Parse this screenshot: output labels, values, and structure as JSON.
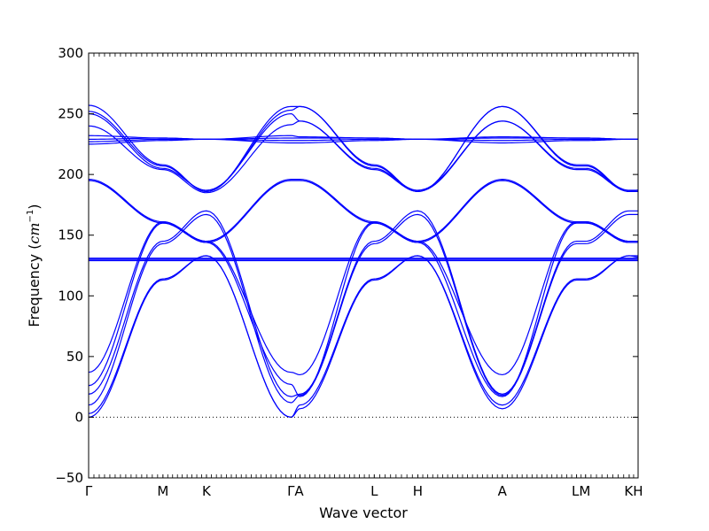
{
  "chart_data": {
    "type": "line",
    "title": "",
    "xlabel": "Wave vector",
    "ylabel": "Frequency",
    "ylabel_unit": "cm",
    "ylabel_unit_exponent": "−1",
    "ylim": [
      -50,
      300
    ],
    "y_ticks": [
      -50,
      0,
      50,
      100,
      150,
      200,
      250,
      300
    ],
    "grid": false,
    "legend": "none",
    "line_color": "#0000ff",
    "zero_line": {
      "y": 0,
      "style": "dotted",
      "color": "#000000"
    },
    "x_path": {
      "points": [
        {
          "label": "Γ",
          "x": 0.0
        },
        {
          "label": "M",
          "x": 0.58
        },
        {
          "label": "K",
          "x": 0.92
        },
        {
          "label": "Γ",
          "x": 1.58
        },
        {
          "label": "A",
          "x": 1.65
        },
        {
          "label": "L",
          "x": 2.23
        },
        {
          "label": "H",
          "x": 2.57
        },
        {
          "label": "A",
          "x": 3.23
        },
        {
          "label": "L",
          "x": 3.81
        },
        {
          "label": "M",
          "x": 3.88
        },
        {
          "label": "K",
          "x": 4.22
        },
        {
          "label": "H",
          "x": 4.29
        }
      ],
      "tick_labels": [
        {
          "text": "Γ",
          "x": 0.0
        },
        {
          "text": "M",
          "x": 0.58
        },
        {
          "text": "K",
          "x": 0.92
        },
        {
          "text": "ΓA",
          "x": 1.615
        },
        {
          "text": "L",
          "x": 2.23
        },
        {
          "text": "H",
          "x": 2.57
        },
        {
          "text": "A",
          "x": 3.23
        },
        {
          "text": "LM",
          "x": 3.845
        },
        {
          "text": "KH",
          "x": 4.255
        }
      ]
    },
    "series": [
      {
        "values": [
          [
            0,
            0
          ],
          [
            0.58,
            113
          ],
          [
            0.92,
            133
          ],
          [
            1.58,
            0
          ],
          [
            1.65,
            7
          ],
          [
            2.23,
            113
          ],
          [
            2.57,
            133
          ],
          [
            3.23,
            7
          ],
          [
            3.81,
            113
          ],
          [
            3.88,
            113
          ],
          [
            4.22,
            133
          ],
          [
            4.29,
            133
          ]
        ]
      },
      {
        "values": [
          [
            0,
            3
          ],
          [
            0.58,
            114
          ],
          [
            0.92,
            133
          ],
          [
            1.58,
            0
          ],
          [
            1.65,
            10
          ],
          [
            2.23,
            114
          ],
          [
            2.57,
            133
          ],
          [
            3.23,
            10
          ],
          [
            3.81,
            114
          ],
          [
            3.88,
            114
          ],
          [
            4.22,
            133
          ],
          [
            4.29,
            132
          ]
        ]
      },
      {
        "values": [
          [
            0,
            10
          ],
          [
            0.58,
            143
          ],
          [
            0.92,
            167
          ],
          [
            1.58,
            12
          ],
          [
            1.65,
            18
          ],
          [
            2.23,
            143
          ],
          [
            2.57,
            167
          ],
          [
            3.23,
            18
          ],
          [
            3.81,
            143
          ],
          [
            3.88,
            143
          ],
          [
            4.22,
            167
          ],
          [
            4.29,
            167
          ]
        ]
      },
      {
        "values": [
          [
            0,
            19
          ],
          [
            0.58,
            145
          ],
          [
            0.92,
            170
          ],
          [
            1.58,
            17
          ],
          [
            1.65,
            19
          ],
          [
            2.23,
            145
          ],
          [
            2.57,
            170
          ],
          [
            3.23,
            19
          ],
          [
            3.81,
            145
          ],
          [
            3.88,
            145
          ],
          [
            4.22,
            170
          ],
          [
            4.29,
            170
          ]
        ]
      },
      {
        "values": [
          [
            0,
            26
          ],
          [
            0.58,
            160
          ],
          [
            0.92,
            144
          ],
          [
            1.58,
            27
          ],
          [
            1.65,
            17
          ],
          [
            2.23,
            160
          ],
          [
            2.57,
            144
          ],
          [
            3.23,
            17
          ],
          [
            3.81,
            160
          ],
          [
            3.88,
            160
          ],
          [
            4.22,
            144
          ],
          [
            4.29,
            144
          ]
        ]
      },
      {
        "values": [
          [
            0,
            37
          ],
          [
            0.58,
            161
          ],
          [
            0.92,
            145
          ],
          [
            1.58,
            37
          ],
          [
            1.65,
            35
          ],
          [
            2.23,
            161
          ],
          [
            2.57,
            145
          ],
          [
            3.23,
            35
          ],
          [
            3.81,
            161
          ],
          [
            3.88,
            161
          ],
          [
            4.22,
            145
          ],
          [
            4.29,
            145
          ]
        ]
      },
      {
        "values": [
          [
            0,
            129
          ],
          [
            0.58,
            129
          ],
          [
            0.92,
            129
          ],
          [
            1.58,
            129
          ],
          [
            1.65,
            129
          ],
          [
            2.23,
            129
          ],
          [
            2.57,
            129
          ],
          [
            3.23,
            129
          ],
          [
            3.81,
            129
          ],
          [
            3.88,
            129
          ],
          [
            4.22,
            129
          ],
          [
            4.29,
            129
          ]
        ]
      },
      {
        "values": [
          [
            0,
            130
          ],
          [
            0.58,
            130
          ],
          [
            0.92,
            130
          ],
          [
            1.58,
            130
          ],
          [
            1.65,
            130
          ],
          [
            2.23,
            130
          ],
          [
            2.57,
            130
          ],
          [
            3.23,
            130
          ],
          [
            3.81,
            130
          ],
          [
            3.88,
            130
          ],
          [
            4.22,
            130
          ],
          [
            4.29,
            130
          ]
        ]
      },
      {
        "values": [
          [
            0,
            131
          ],
          [
            0.58,
            131
          ],
          [
            0.92,
            131
          ],
          [
            1.58,
            131
          ],
          [
            1.65,
            131
          ],
          [
            2.23,
            131
          ],
          [
            2.57,
            131
          ],
          [
            3.23,
            131
          ],
          [
            3.81,
            131
          ],
          [
            3.88,
            131
          ],
          [
            4.22,
            131
          ],
          [
            4.29,
            131
          ]
        ]
      },
      {
        "values": [
          [
            0,
            195
          ],
          [
            0.58,
            160
          ],
          [
            0.92,
            144
          ],
          [
            1.58,
            195
          ],
          [
            1.65,
            195
          ],
          [
            2.23,
            160
          ],
          [
            2.57,
            144
          ],
          [
            3.23,
            195
          ],
          [
            3.81,
            160
          ],
          [
            3.88,
            160
          ],
          [
            4.22,
            144
          ],
          [
            4.29,
            144
          ]
        ]
      },
      {
        "values": [
          [
            0,
            196
          ],
          [
            0.58,
            161
          ],
          [
            0.92,
            145
          ],
          [
            1.58,
            196
          ],
          [
            1.65,
            196
          ],
          [
            2.23,
            161
          ],
          [
            2.57,
            145
          ],
          [
            3.23,
            196
          ],
          [
            3.81,
            161
          ],
          [
            3.88,
            161
          ],
          [
            4.22,
            145
          ],
          [
            4.29,
            145
          ]
        ]
      },
      {
        "values": [
          [
            0,
            225
          ],
          [
            0.58,
            228
          ],
          [
            0.92,
            229
          ],
          [
            1.58,
            226
          ],
          [
            1.65,
            226
          ],
          [
            2.23,
            228
          ],
          [
            2.57,
            229
          ],
          [
            3.23,
            226
          ],
          [
            3.81,
            228
          ],
          [
            3.88,
            228
          ],
          [
            4.22,
            229
          ],
          [
            4.29,
            229
          ]
        ]
      },
      {
        "values": [
          [
            0,
            227
          ],
          [
            0.58,
            229
          ],
          [
            0.92,
            229
          ],
          [
            1.58,
            228
          ],
          [
            1.65,
            228
          ],
          [
            2.23,
            229
          ],
          [
            2.57,
            229
          ],
          [
            3.23,
            228
          ],
          [
            3.81,
            229
          ],
          [
            3.88,
            229
          ],
          [
            4.22,
            229
          ],
          [
            4.29,
            229
          ]
        ]
      },
      {
        "values": [
          [
            0,
            229
          ],
          [
            0.58,
            230
          ],
          [
            0.92,
            229
          ],
          [
            1.58,
            230
          ],
          [
            1.65,
            230
          ],
          [
            2.23,
            230
          ],
          [
            2.57,
            229
          ],
          [
            3.23,
            230
          ],
          [
            3.81,
            230
          ],
          [
            3.88,
            230
          ],
          [
            4.22,
            229
          ],
          [
            4.29,
            229
          ]
        ]
      },
      {
        "values": [
          [
            0,
            232
          ],
          [
            0.58,
            230
          ],
          [
            0.92,
            229
          ],
          [
            1.58,
            232
          ],
          [
            1.65,
            231
          ],
          [
            2.23,
            230
          ],
          [
            2.57,
            229
          ],
          [
            3.23,
            231
          ],
          [
            3.81,
            230
          ],
          [
            3.88,
            230
          ],
          [
            4.22,
            229
          ],
          [
            4.29,
            229
          ]
        ]
      },
      {
        "values": [
          [
            0,
            240
          ],
          [
            0.58,
            204
          ],
          [
            0.92,
            185
          ],
          [
            1.58,
            241
          ],
          [
            1.65,
            244
          ],
          [
            2.23,
            204
          ],
          [
            2.57,
            186
          ],
          [
            3.23,
            244
          ],
          [
            3.81,
            204
          ],
          [
            3.88,
            204
          ],
          [
            4.22,
            186
          ],
          [
            4.29,
            186
          ]
        ]
      },
      {
        "values": [
          [
            0,
            250
          ],
          [
            0.58,
            205
          ],
          [
            0.92,
            187
          ],
          [
            1.58,
            250
          ],
          [
            1.65,
            244
          ],
          [
            2.23,
            205
          ],
          [
            2.57,
            187
          ],
          [
            3.23,
            244
          ],
          [
            3.81,
            205
          ],
          [
            3.88,
            205
          ],
          [
            4.22,
            187
          ],
          [
            4.29,
            187
          ]
        ]
      },
      {
        "values": [
          [
            0,
            252
          ],
          [
            0.58,
            207
          ],
          [
            0.92,
            186
          ],
          [
            1.58,
            253
          ],
          [
            1.65,
            256
          ],
          [
            2.23,
            207
          ],
          [
            2.57,
            186
          ],
          [
            3.23,
            256
          ],
          [
            3.81,
            207
          ],
          [
            3.88,
            207
          ],
          [
            4.22,
            186
          ],
          [
            4.29,
            187
          ]
        ]
      },
      {
        "values": [
          [
            0,
            257
          ],
          [
            0.58,
            208
          ],
          [
            0.92,
            186
          ],
          [
            1.58,
            256
          ],
          [
            1.65,
            256
          ],
          [
            2.23,
            208
          ],
          [
            2.57,
            186
          ],
          [
            3.23,
            256
          ],
          [
            3.81,
            208
          ],
          [
            3.88,
            208
          ],
          [
            4.22,
            186
          ],
          [
            4.29,
            187
          ]
        ]
      }
    ]
  }
}
